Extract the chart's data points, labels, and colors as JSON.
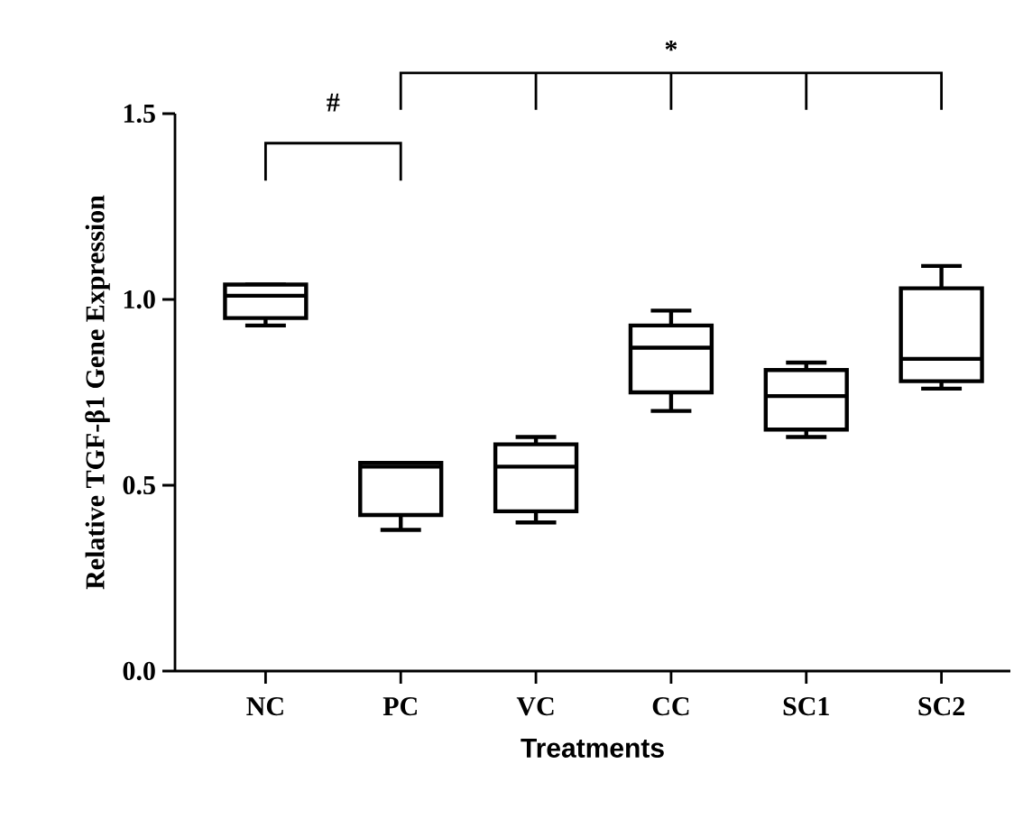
{
  "chart_data": {
    "type": "box",
    "xlabel": "Treatments",
    "ylabel": "Relative TGF-β1 Gene Expression",
    "categories": [
      "NC",
      "PC",
      "VC",
      "CC",
      "SC1",
      "SC2"
    ],
    "boxes": [
      {
        "low": 0.93,
        "q1": 0.95,
        "median": 1.01,
        "q3": 1.04,
        "high": 1.04
      },
      {
        "low": 0.38,
        "q1": 0.42,
        "median": 0.55,
        "q3": 0.56,
        "high": 0.56
      },
      {
        "low": 0.4,
        "q1": 0.43,
        "median": 0.55,
        "q3": 0.61,
        "high": 0.63
      },
      {
        "low": 0.7,
        "q1": 0.75,
        "median": 0.87,
        "q3": 0.93,
        "high": 0.97
      },
      {
        "low": 0.63,
        "q1": 0.65,
        "median": 0.74,
        "q3": 0.81,
        "high": 0.83
      },
      {
        "low": 0.76,
        "q1": 0.78,
        "median": 0.84,
        "q3": 1.03,
        "high": 1.09
      }
    ],
    "color": "#000000",
    "ylim": [
      0,
      1.5
    ],
    "yticks": [
      {
        "value": 0,
        "label": "0.0"
      },
      {
        "value": 0.5,
        "label": "0.5"
      },
      {
        "value": 1.0,
        "label": "1.0"
      },
      {
        "value": 1.5,
        "label": "1.5"
      }
    ],
    "annotations": [
      "#",
      "*"
    ]
  }
}
